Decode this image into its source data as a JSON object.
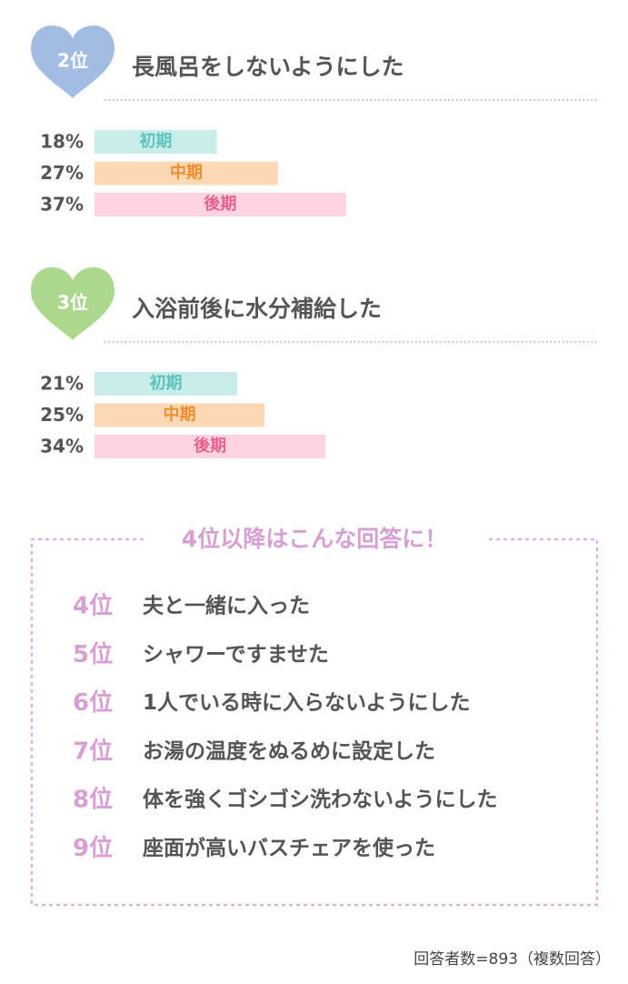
{
  "chart_data": [
    {
      "type": "bar",
      "rank": "2位",
      "title": "長風呂をしないようにした",
      "badge_color": "#a2bde2",
      "categories": [
        "初期",
        "中期",
        "後期"
      ],
      "values": [
        18,
        27,
        37
      ],
      "value_labels": [
        "18%",
        "27%",
        "37%"
      ],
      "colors": [
        "#c8ede9",
        "#fdd8b5",
        "#fcd4df"
      ],
      "label_colors": [
        "#5cc4bd",
        "#f08c2c",
        "#e8608a"
      ]
    },
    {
      "type": "bar",
      "rank": "3位",
      "title": "入浴前後に水分補給した",
      "badge_color": "#acd88e",
      "categories": [
        "初期",
        "中期",
        "後期"
      ],
      "values": [
        21,
        25,
        34
      ],
      "value_labels": [
        "21%",
        "25%",
        "34%"
      ],
      "colors": [
        "#c8ede9",
        "#fdd8b5",
        "#fcd4df"
      ],
      "label_colors": [
        "#5cc4bd",
        "#f08c2c",
        "#e8608a"
      ]
    }
  ],
  "ranking_box": {
    "title": "4位以降はこんな回答に！",
    "items": [
      {
        "rank": "4位",
        "text": "夫と一緒に入った"
      },
      {
        "rank": "5位",
        "text": "シャワーですませた"
      },
      {
        "rank": "6位",
        "text": "1人でいる時に入らないようにした"
      },
      {
        "rank": "7位",
        "text": "お湯の温度をぬるめに設定した"
      },
      {
        "rank": "8位",
        "text": "体を強くゴシゴシ洗わないようにした"
      },
      {
        "rank": "9位",
        "text": "座面が高いバスチェアを使った"
      }
    ]
  },
  "footnote": "回答者数=893（複数回答）"
}
